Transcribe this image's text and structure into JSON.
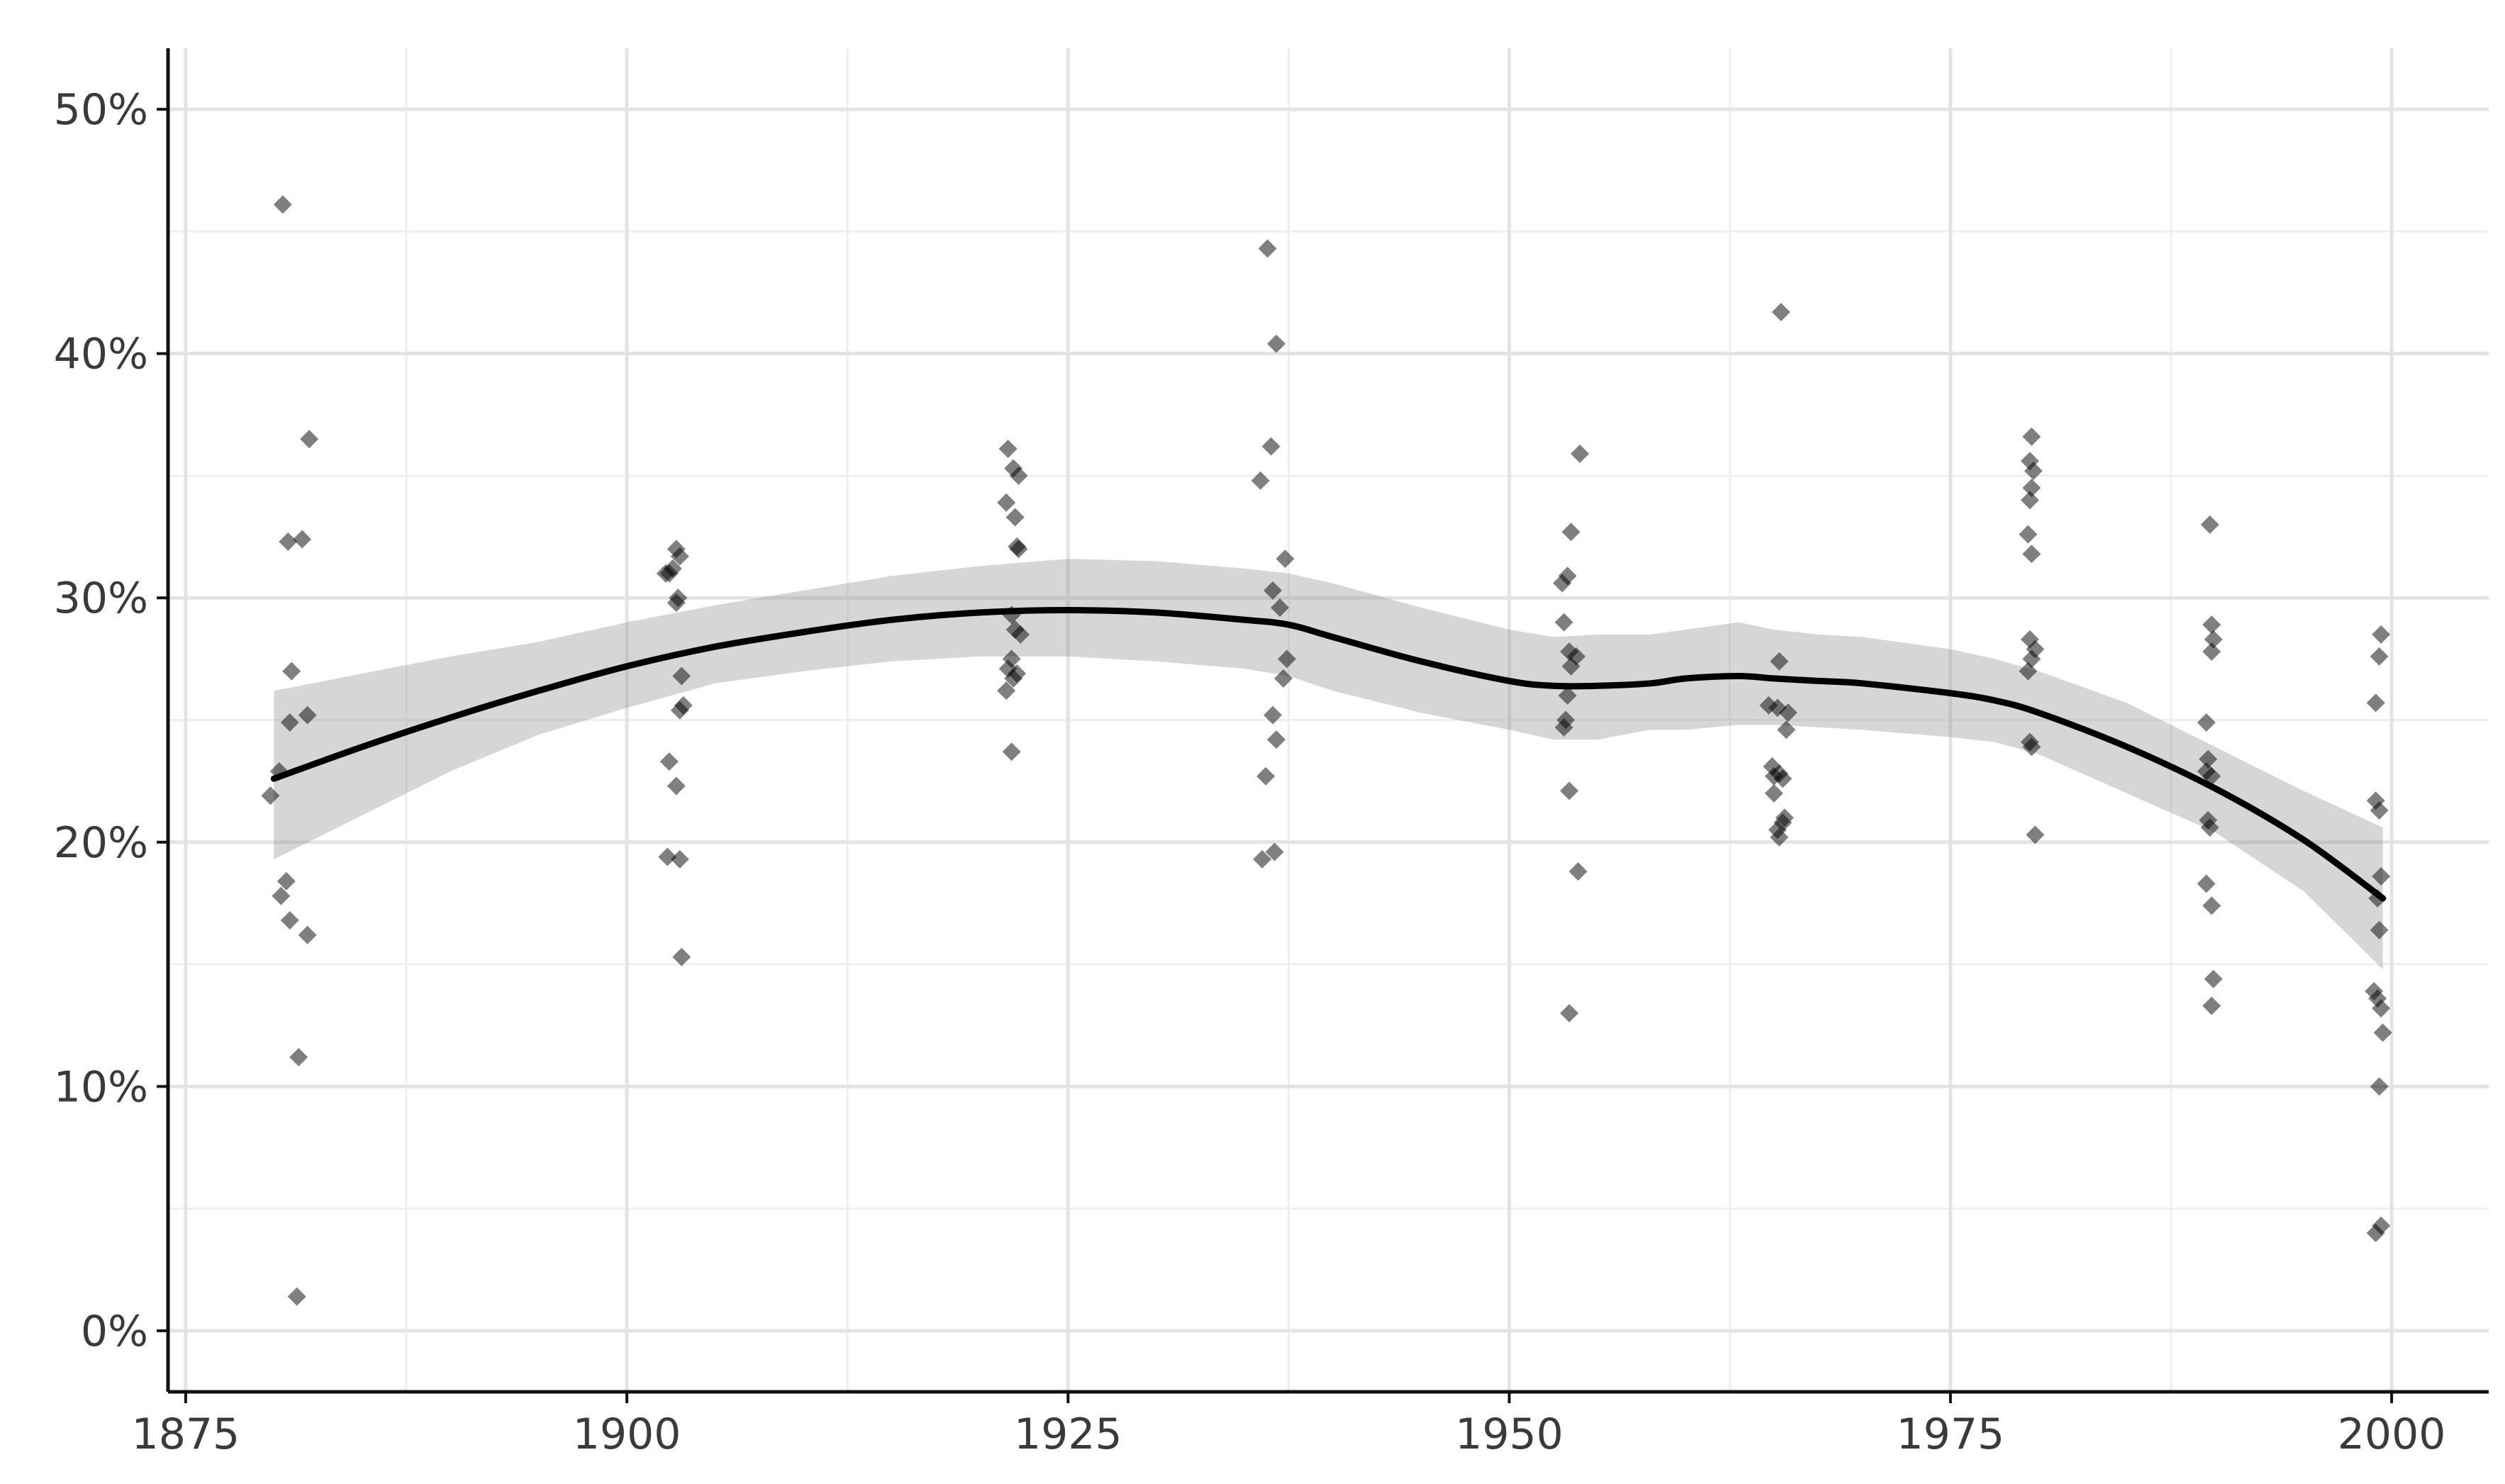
{
  "chart_data": {
    "type": "scatter",
    "title": "",
    "xlabel": "",
    "ylabel": "",
    "xlim": [
      1874,
      2005.5
    ],
    "ylim": [
      -2.5,
      52.5
    ],
    "x_ticks": [
      1875,
      1900,
      1925,
      1950,
      1975,
      2000
    ],
    "x_tick_labels": [
      "1875",
      "1900",
      "1925",
      "1950",
      "1975",
      "2000"
    ],
    "x_minor": [
      1887.5,
      1912.5,
      1937.5,
      1962.5,
      1987.5
    ],
    "y_ticks": [
      0,
      10,
      20,
      30,
      40,
      50
    ],
    "y_tick_labels": [
      "0%",
      "10%",
      "20%",
      "30%",
      "40%",
      "50%"
    ],
    "y_minor": [
      5,
      15,
      25,
      35,
      45
    ],
    "grid": true,
    "legend": "none",
    "colors": {
      "points": "#000000",
      "smooth": "#000000",
      "ribbon": "#999999"
    },
    "points": [
      [
        1880.5,
        46.1
      ],
      [
        1882.0,
        36.5
      ],
      [
        1880.8,
        32.3
      ],
      [
        1881.6,
        32.4
      ],
      [
        1881.0,
        27.0
      ],
      [
        1881.9,
        25.2
      ],
      [
        1880.9,
        24.9
      ],
      [
        1880.3,
        22.9
      ],
      [
        1879.8,
        21.9
      ],
      [
        1880.7,
        18.4
      ],
      [
        1880.4,
        17.8
      ],
      [
        1880.9,
        16.8
      ],
      [
        1881.9,
        16.2
      ],
      [
        1881.4,
        11.2
      ],
      [
        1881.3,
        1.4
      ],
      [
        1902.2,
        31.0
      ],
      [
        1902.6,
        31.2
      ],
      [
        1902.8,
        32.0
      ],
      [
        1903.0,
        31.7
      ],
      [
        1902.4,
        31.0
      ],
      [
        1902.9,
        30.0
      ],
      [
        1902.8,
        29.8
      ],
      [
        1903.1,
        26.8
      ],
      [
        1903.2,
        25.6
      ],
      [
        1903.0,
        25.4
      ],
      [
        1902.4,
        23.3
      ],
      [
        1902.8,
        22.3
      ],
      [
        1902.3,
        19.4
      ],
      [
        1903.0,
        19.3
      ],
      [
        1903.1,
        15.3
      ],
      [
        1921.6,
        36.1
      ],
      [
        1921.9,
        35.3
      ],
      [
        1922.2,
        35.0
      ],
      [
        1921.5,
        33.9
      ],
      [
        1922.0,
        33.3
      ],
      [
        1922.1,
        32.1
      ],
      [
        1922.2,
        32.0
      ],
      [
        1921.8,
        29.3
      ],
      [
        1922.0,
        28.7
      ],
      [
        1922.3,
        28.5
      ],
      [
        1921.8,
        27.5
      ],
      [
        1921.6,
        27.1
      ],
      [
        1921.9,
        26.7
      ],
      [
        1922.1,
        26.9
      ],
      [
        1921.5,
        26.2
      ],
      [
        1921.8,
        23.7
      ],
      [
        1936.3,
        44.3
      ],
      [
        1936.8,
        40.4
      ],
      [
        1936.5,
        36.2
      ],
      [
        1935.9,
        34.8
      ],
      [
        1937.3,
        31.6
      ],
      [
        1936.6,
        30.3
      ],
      [
        1937.0,
        29.6
      ],
      [
        1937.4,
        27.5
      ],
      [
        1937.2,
        26.7
      ],
      [
        1936.6,
        25.2
      ],
      [
        1936.8,
        24.2
      ],
      [
        1936.2,
        22.7
      ],
      [
        1936.0,
        19.3
      ],
      [
        1936.7,
        19.6
      ],
      [
        1954.0,
        35.9
      ],
      [
        1953.5,
        32.7
      ],
      [
        1953.3,
        30.9
      ],
      [
        1953.0,
        30.6
      ],
      [
        1953.1,
        29.0
      ],
      [
        1953.4,
        27.8
      ],
      [
        1953.8,
        27.6
      ],
      [
        1953.5,
        27.2
      ],
      [
        1953.3,
        26.0
      ],
      [
        1953.2,
        25.0
      ],
      [
        1953.1,
        24.7
      ],
      [
        1953.4,
        22.1
      ],
      [
        1953.9,
        18.8
      ],
      [
        1953.4,
        13.0
      ],
      [
        1965.4,
        41.7
      ],
      [
        1965.3,
        27.4
      ],
      [
        1964.7,
        25.6
      ],
      [
        1965.2,
        25.5
      ],
      [
        1965.8,
        25.3
      ],
      [
        1965.7,
        24.6
      ],
      [
        1964.9,
        23.1
      ],
      [
        1965.3,
        22.8
      ],
      [
        1965.0,
        22.7
      ],
      [
        1965.5,
        22.6
      ],
      [
        1965.0,
        22.0
      ],
      [
        1965.6,
        21.0
      ],
      [
        1965.5,
        20.8
      ],
      [
        1965.2,
        20.5
      ],
      [
        1965.3,
        20.2
      ],
      [
        1979.6,
        36.6
      ],
      [
        1979.5,
        35.6
      ],
      [
        1979.7,
        35.2
      ],
      [
        1979.6,
        34.5
      ],
      [
        1979.5,
        34.0
      ],
      [
        1979.4,
        32.6
      ],
      [
        1979.6,
        31.8
      ],
      [
        1979.5,
        28.3
      ],
      [
        1979.8,
        27.9
      ],
      [
        1979.6,
        27.5
      ],
      [
        1979.4,
        27.0
      ],
      [
        1979.5,
        24.1
      ],
      [
        1979.6,
        23.9
      ],
      [
        1979.8,
        20.3
      ],
      [
        1989.7,
        33.0
      ],
      [
        1989.8,
        28.9
      ],
      [
        1989.9,
        28.3
      ],
      [
        1989.8,
        27.8
      ],
      [
        1989.5,
        24.9
      ],
      [
        1989.6,
        23.4
      ],
      [
        1989.5,
        22.9
      ],
      [
        1989.8,
        22.7
      ],
      [
        1989.6,
        20.9
      ],
      [
        1989.7,
        20.6
      ],
      [
        1989.5,
        18.3
      ],
      [
        1989.8,
        17.4
      ],
      [
        1989.9,
        14.4
      ],
      [
        1989.8,
        13.3
      ],
      [
        1999.4,
        28.5
      ],
      [
        1999.3,
        27.6
      ],
      [
        1999.1,
        25.7
      ],
      [
        1999.1,
        21.7
      ],
      [
        1999.3,
        21.3
      ],
      [
        1999.4,
        18.6
      ],
      [
        1999.2,
        17.7
      ],
      [
        1999.3,
        16.4
      ],
      [
        1999.0,
        13.9
      ],
      [
        1999.2,
        13.6
      ],
      [
        1999.4,
        13.2
      ],
      [
        1999.5,
        12.2
      ],
      [
        1999.3,
        10.0
      ],
      [
        1999.4,
        4.3
      ],
      [
        1999.1,
        4.0
      ]
    ],
    "smooth_line": {
      "x": [
        1880,
        1885,
        1890,
        1895,
        1900,
        1905,
        1910,
        1915,
        1920,
        1925,
        1930,
        1935,
        1937.5,
        1940,
        1945,
        1950,
        1952.5,
        1955,
        1958,
        1960,
        1963,
        1965,
        1967.5,
        1970,
        1975,
        1977.5,
        1980,
        1985,
        1990,
        1995,
        1999.5
      ],
      "y": [
        22.6,
        23.9,
        25.1,
        26.2,
        27.2,
        28.0,
        28.6,
        29.1,
        29.4,
        29.5,
        29.4,
        29.1,
        28.9,
        28.4,
        27.4,
        26.6,
        26.4,
        26.4,
        26.5,
        26.7,
        26.8,
        26.7,
        26.6,
        26.5,
        26.1,
        25.8,
        25.3,
        23.9,
        22.2,
        20.1,
        17.7
      ]
    },
    "confidence_band": {
      "x": [
        1880,
        1885,
        1890,
        1895,
        1900,
        1905,
        1910,
        1915,
        1920,
        1925,
        1930,
        1935,
        1937.5,
        1940,
        1945,
        1950,
        1952.5,
        1955,
        1958,
        1960,
        1963,
        1965,
        1967.5,
        1970,
        1975,
        1977.5,
        1980,
        1985,
        1990,
        1995,
        1999.5
      ],
      "lower": [
        19.3,
        21.1,
        22.9,
        24.4,
        25.5,
        26.5,
        27.0,
        27.4,
        27.6,
        27.6,
        27.4,
        27.1,
        26.8,
        26.2,
        25.3,
        24.6,
        24.2,
        24.2,
        24.6,
        24.6,
        24.8,
        24.8,
        24.7,
        24.6,
        24.3,
        24.1,
        23.6,
        22.0,
        20.4,
        18.0,
        14.8
      ],
      "upper": [
        26.2,
        26.9,
        27.6,
        28.2,
        29.0,
        29.7,
        30.3,
        30.9,
        31.3,
        31.6,
        31.5,
        31.2,
        31.0,
        30.6,
        29.6,
        28.7,
        28.4,
        28.5,
        28.5,
        28.7,
        29.0,
        28.7,
        28.5,
        28.4,
        27.9,
        27.5,
        27.0,
        25.7,
        23.9,
        22.1,
        20.6
      ]
    }
  }
}
